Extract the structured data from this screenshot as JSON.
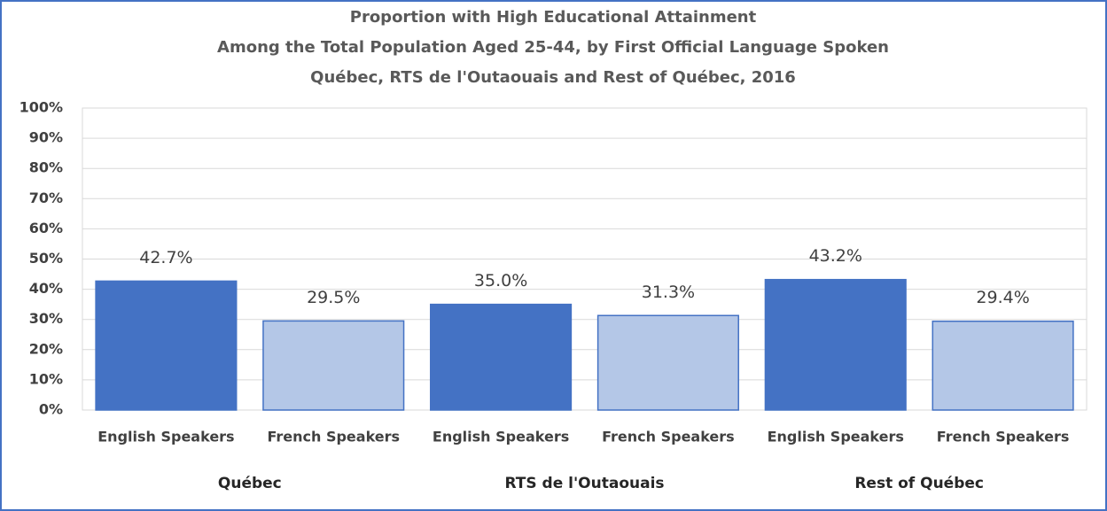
{
  "chart_data": {
    "type": "bar",
    "title": [
      "Proportion with High Educational Attainment",
      "Among the Total Population Aged 25-44, by First Official Language Spoken",
      "Québec, RTS de l'Outaouais and Rest of Québec, 2016"
    ],
    "categories": [
      "English Speakers",
      "French Speakers",
      "English Speakers",
      "French Speakers",
      "English Speakers",
      "French Speakers"
    ],
    "groups": [
      "Québec",
      "RTS de l'Outaouais",
      "Rest of Québec"
    ],
    "values": [
      42.7,
      29.5,
      35.0,
      31.3,
      43.2,
      29.4
    ],
    "value_labels": [
      "42.7%",
      "29.5%",
      "35.0%",
      "31.3%",
      "43.2%",
      "29.4%"
    ],
    "colors": [
      "#4472c4",
      "#b4c7e7",
      "#4472c4",
      "#b4c7e7",
      "#4472c4",
      "#b4c7e7"
    ],
    "ylim": [
      0,
      100
    ],
    "yticks": [
      {
        "value": 0,
        "label": "0%"
      },
      {
        "value": 10,
        "label": "10%"
      },
      {
        "value": 20,
        "label": "20%"
      },
      {
        "value": 30,
        "label": "30%"
      },
      {
        "value": 40,
        "label": "40%"
      },
      {
        "value": 50,
        "label": "50%"
      },
      {
        "value": 60,
        "label": "60%"
      },
      {
        "value": 70,
        "label": "70%"
      },
      {
        "value": 80,
        "label": "80%"
      },
      {
        "value": 90,
        "label": "90%"
      },
      {
        "value": 100,
        "label": "100%"
      }
    ],
    "grid": true
  }
}
